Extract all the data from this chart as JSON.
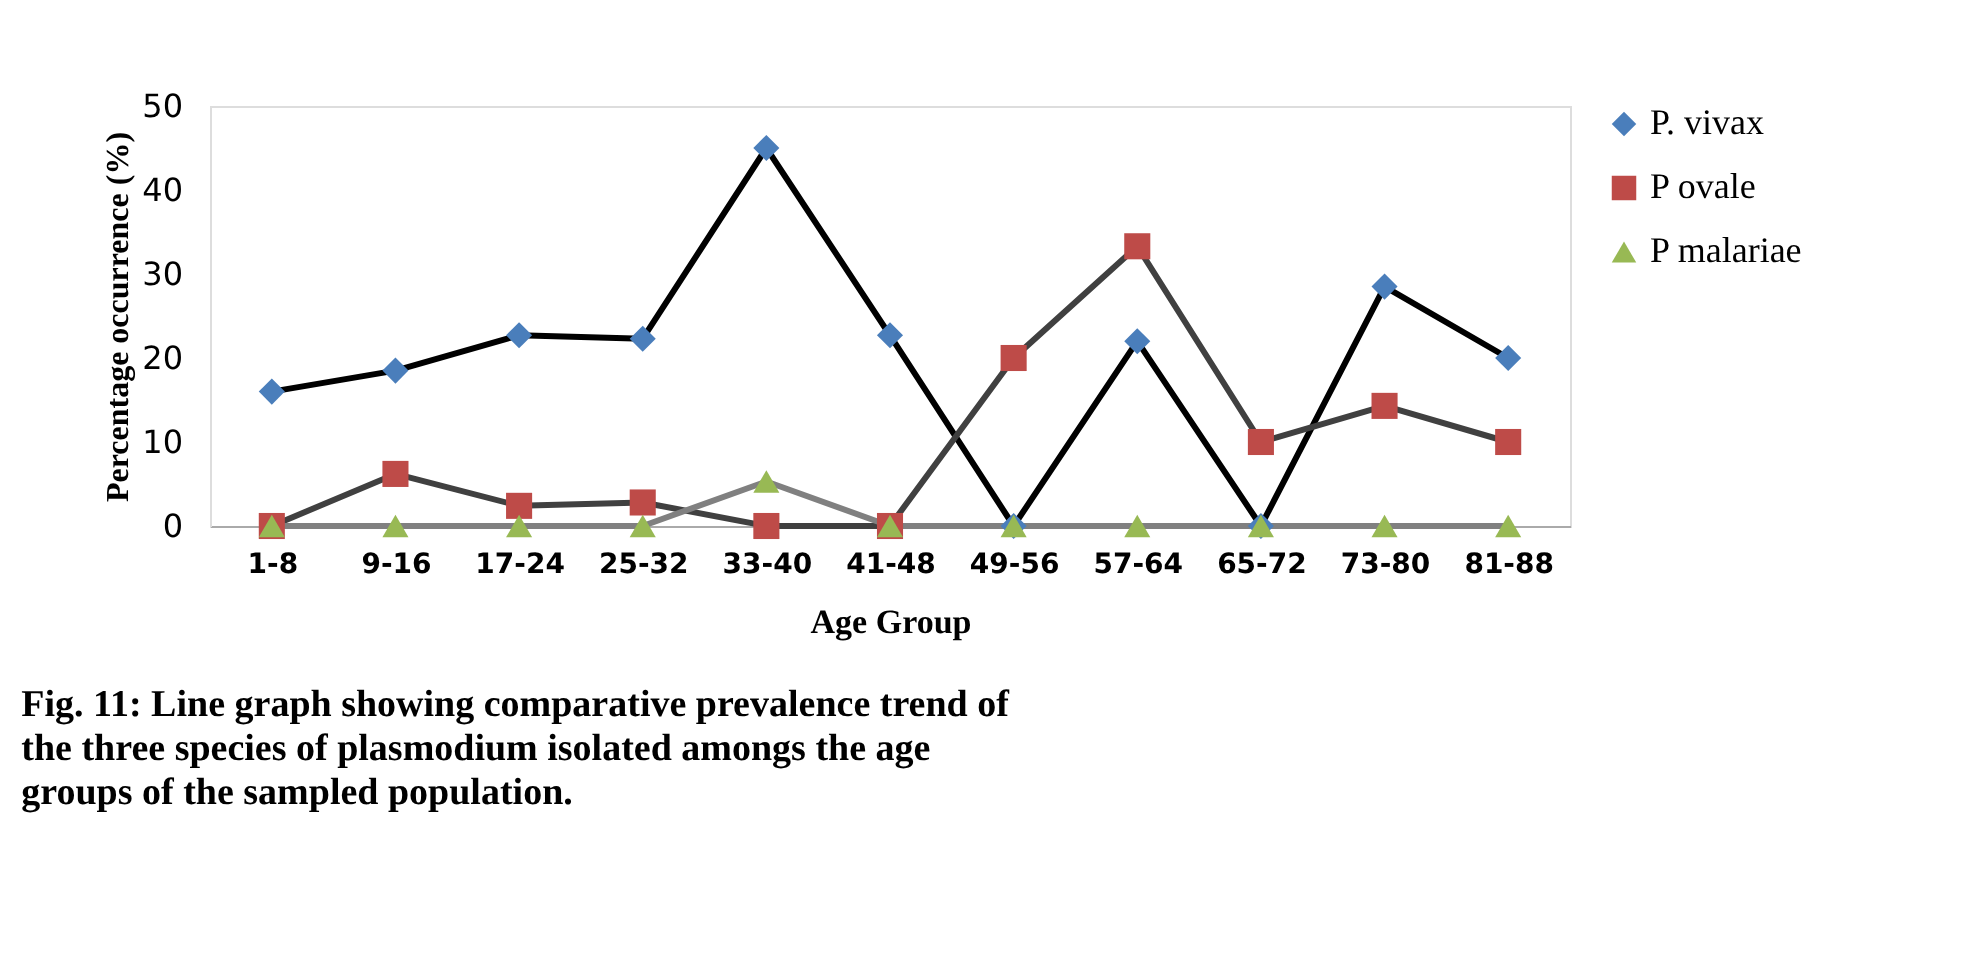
{
  "chart_data": {
    "type": "line",
    "xlabel": "Age Group",
    "ylabel": "Percentage occurrence (%)",
    "categories": [
      "1-8",
      "9-16",
      "17-24",
      "25-32",
      "33-40",
      "41-48",
      "49-56",
      "57-64",
      "65-72",
      "73-80",
      "81-88"
    ],
    "series": [
      {
        "name": "P. vivax",
        "color": "#4a7ebb",
        "marker": "diamond",
        "values": [
          16,
          18.5,
          22.7,
          22.3,
          45,
          22.7,
          0,
          22,
          0,
          28.5,
          20
        ]
      },
      {
        "name": "P ovale",
        "color": "#be4b48",
        "marker": "square",
        "values": [
          0,
          6.2,
          2.4,
          2.8,
          0,
          0,
          20,
          33.3,
          10,
          14.3,
          10
        ]
      },
      {
        "name": "P malariae",
        "color": "#98b954",
        "marker": "triangle",
        "values": [
          0,
          0,
          0,
          0,
          5.3,
          0,
          0,
          0,
          0,
          0,
          0
        ]
      }
    ],
    "ylim": [
      0,
      50
    ],
    "yticks": [
      0,
      10,
      20,
      30,
      40,
      50
    ],
    "grid": false,
    "legend": "top right",
    "line_style": "solid",
    "annotations": [
      "Fig. 11: Line graph showing comparative prevalence trend of the three species of plasmodium isolated amongs the age groups of the sampled population."
    ]
  }
}
